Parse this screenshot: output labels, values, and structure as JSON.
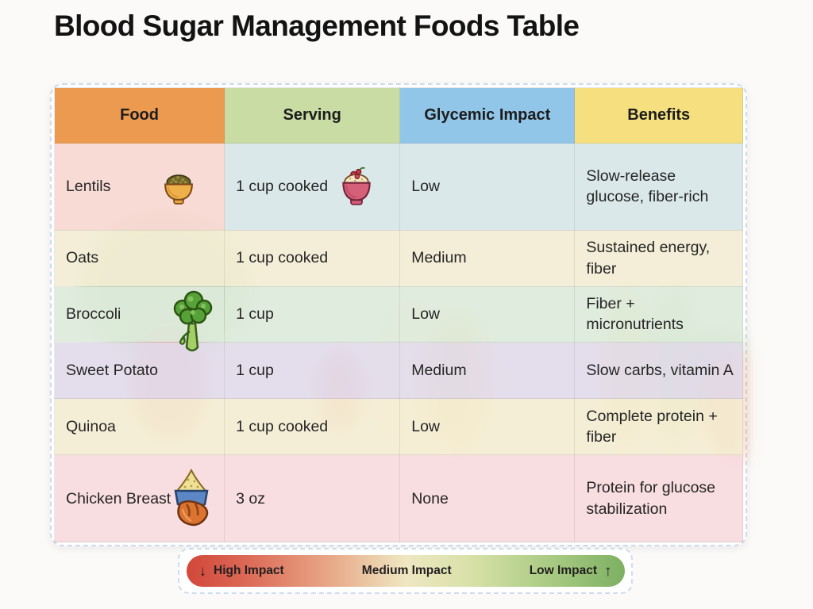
{
  "title": "Blood Sugar Management Foods Table",
  "chart_data": {
    "type": "table",
    "title": "Blood Sugar Management Foods Table",
    "columns": [
      {
        "label": "Food",
        "header_color": "#EC9A50"
      },
      {
        "label": "Serving",
        "header_color": "#C9DCA4"
      },
      {
        "label": "Glycemic Impact",
        "header_color": "#92C6E9"
      },
      {
        "label": "Benefits",
        "header_color": "#F5DF7E"
      }
    ],
    "rows": [
      {
        "food": "Lentils",
        "food_icon": "lentils-bowl-icon",
        "serving": "1 cup cooked",
        "serving_icon": "porridge-bowl-icon",
        "glycemic_impact": "Low",
        "benefits": "Slow-release glucose, fiber-rich",
        "row_height": "tall",
        "food_cell_color": "rgba(247,216,209,0.92)",
        "row_color": "rgba(215,230,232,0.92)"
      },
      {
        "food": "Oats",
        "serving": "1 cup cooked",
        "glycemic_impact": "Medium",
        "benefits": "Sustained energy, fiber",
        "row_height": "normal",
        "food_cell_color": "rgba(243,236,212,0.9)",
        "row_color": "rgba(243,236,212,0.9)"
      },
      {
        "food": "Broccoli",
        "food_icon": "broccoli-icon",
        "serving": "1 cup",
        "glycemic_impact": "Low",
        "benefits": "Fiber + micronutrients",
        "row_height": "normal",
        "food_cell_color": "rgba(221,234,218,0.9)",
        "row_color": "rgba(221,234,218,0.9)"
      },
      {
        "food": "Sweet Potato",
        "serving": "1 cup",
        "glycemic_impact": "Medium",
        "benefits": "Slow carbs, vitamin A",
        "row_height": "normal",
        "food_cell_color": "rgba(225,218,234,0.9)",
        "row_color": "rgba(225,218,234,0.9)"
      },
      {
        "food": "Quinoa",
        "serving": "1 cup cooked",
        "glycemic_impact": "Low",
        "benefits": "Complete protein + fiber",
        "row_height": "normal",
        "food_cell_color": "rgba(244,236,209,0.9)",
        "row_color": "rgba(244,236,209,0.9)"
      },
      {
        "food": "Chicken Breast",
        "food_icon": "chicken-bowl-icon",
        "serving": "3 oz",
        "glycemic_impact": "None",
        "benefits": "Protein for glucose stabilization",
        "row_height": "tall",
        "food_cell_color": "rgba(247,218,222,0.92)",
        "row_color": "rgba(247,218,222,0.92)"
      }
    ],
    "legend": {
      "items": [
        {
          "label": "High Impact",
          "arrow": "↓",
          "arrow_position": "before"
        },
        {
          "label": "Medium Impact"
        },
        {
          "label": "Low Impact",
          "arrow": "↑",
          "arrow_position": "after"
        }
      ],
      "gradient": [
        "#D2473A",
        "#EFE7C2",
        "#7DB062"
      ]
    }
  }
}
